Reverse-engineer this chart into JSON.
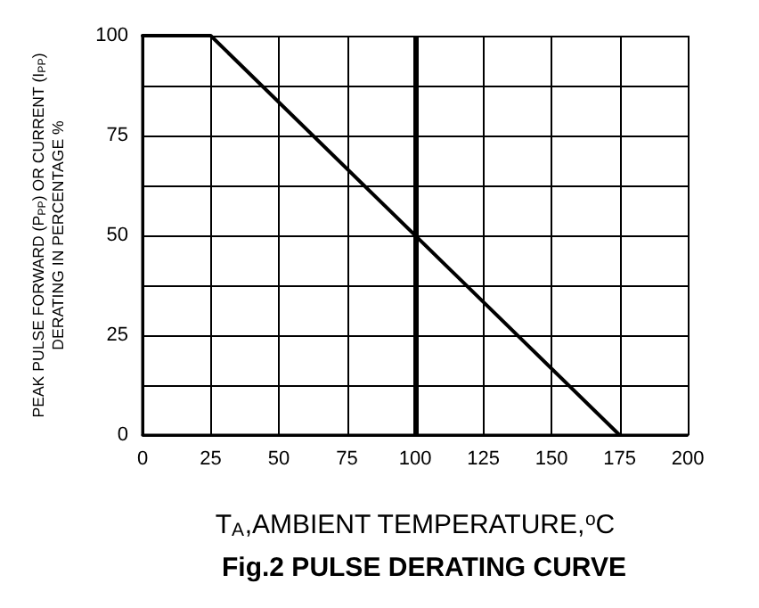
{
  "chart_data": {
    "type": "line",
    "title": "Fig.2 PULSE DERATING CURVE",
    "xlabel": "T$_{A}$,AMBIENT TEMPERATURE,$^{o}$C",
    "ylabel": "PEAK PULSE FORWARD (P$_{PP}$) OR CURRENT (I$_{PP}$)\nDERATING IN PERCENTAGE %",
    "x": [
      0,
      25,
      175
    ],
    "series": [
      {
        "color": "#000000",
        "values": [
          100,
          100,
          0
        ]
      }
    ],
    "xlim": [
      0,
      200
    ],
    "xticks": [
      0,
      25,
      50,
      75,
      100,
      125,
      150,
      175,
      200
    ],
    "ylim": [
      0,
      100
    ],
    "yticks": [
      0,
      {
        "value": 12.5,
        "label": null
      },
      25,
      {
        "value": 37.5,
        "label": null
      },
      50,
      {
        "value": 62.5,
        "label": null
      },
      75,
      {
        "value": 87.5,
        "label": null
      },
      100
    ],
    "ref_lines": [
      {
        "axis": "x",
        "value": 100,
        "color": "#000000",
        "line_style": "solid"
      }
    ],
    "grid": true,
    "marker": "none",
    "line_style": "solid"
  }
}
